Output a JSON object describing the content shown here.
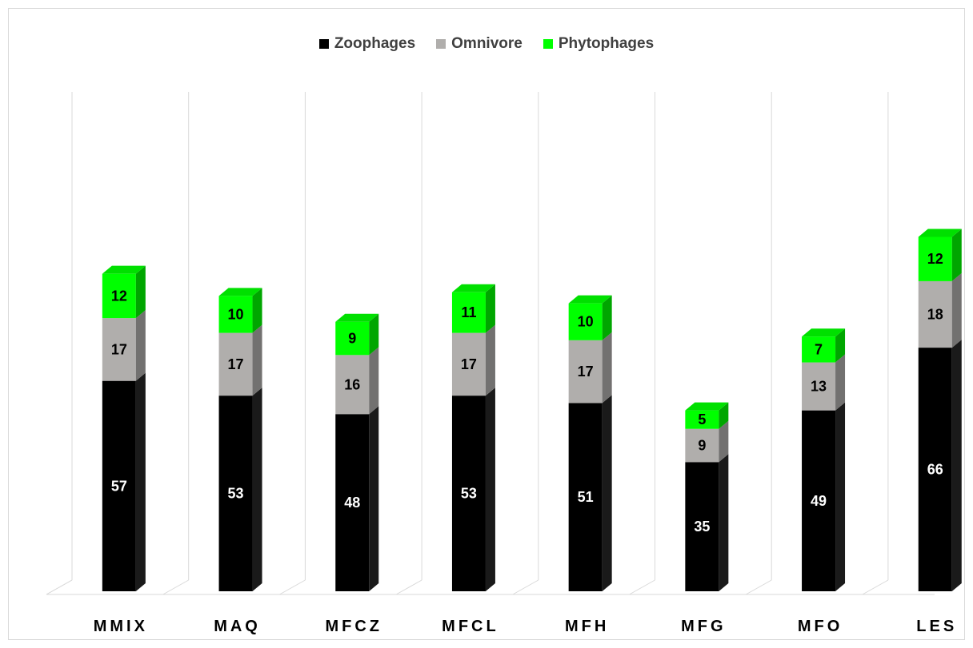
{
  "chart_data": {
    "type": "bar",
    "stacked": true,
    "style": "3d-column",
    "categories": [
      "MMIX",
      "MAQ",
      "MFCZ",
      "MFCL",
      "MFH",
      "MFG",
      "MFO",
      "LES"
    ],
    "series": [
      {
        "name": "Zoophages",
        "color": "#000000",
        "label_color": "#ffffff",
        "values": [
          57,
          53,
          48,
          53,
          51,
          35,
          49,
          66
        ]
      },
      {
        "name": "Omnivore",
        "color": "#b0aeac",
        "label_color": "#000000",
        "values": [
          17,
          17,
          16,
          17,
          17,
          9,
          13,
          18
        ]
      },
      {
        "name": "Phytophages",
        "color": "#00ff00",
        "label_color": "#000000",
        "values": [
          12,
          10,
          9,
          11,
          10,
          5,
          7,
          12
        ]
      }
    ],
    "legend_position": "top",
    "grid": "vertical",
    "data_labels": true
  }
}
